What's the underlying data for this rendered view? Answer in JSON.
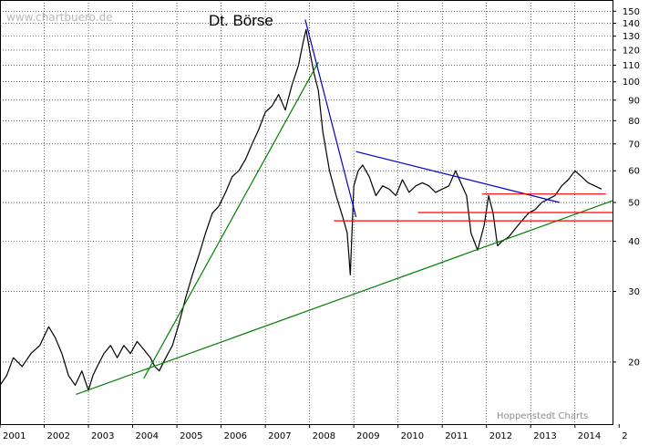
{
  "chart_data": {
    "type": "line",
    "title": "Dt. Börse",
    "watermark": "www.chartbuero.de",
    "credit": "Hoppenstedt Charts",
    "yscale": "log",
    "ylim": [
      14,
      160
    ],
    "yticks": [
      20,
      30,
      40,
      50,
      60,
      70,
      80,
      90,
      100,
      110,
      120,
      130,
      140,
      150
    ],
    "xlim": [
      2001.0,
      2014.85
    ],
    "xticks": [
      "2001",
      "2002",
      "2003",
      "2004",
      "2005",
      "2006",
      "2007",
      "2008",
      "2009",
      "2010",
      "2011",
      "2012",
      "2013",
      "2014",
      "2"
    ],
    "grid": true,
    "series": [
      {
        "x": [
          2001.0,
          2001.15,
          2001.3,
          2001.5,
          2001.7,
          2001.9,
          2002.1,
          2002.25,
          2002.4,
          2002.55,
          2002.7,
          2002.85,
          2003.0,
          2003.1,
          2003.2,
          2003.35,
          2003.5,
          2003.65,
          2003.8,
          2003.95,
          2004.1,
          2004.25,
          2004.4,
          2004.5,
          2004.6,
          2004.75,
          2004.9,
          2005.05,
          2005.2,
          2005.35,
          2005.5,
          2005.65,
          2005.8,
          2005.95,
          2006.1,
          2006.25,
          2006.4,
          2006.55,
          2006.7,
          2006.85,
          2007.0,
          2007.15,
          2007.3,
          2007.45,
          2007.6,
          2007.75,
          2007.85,
          2007.92,
          2008.0,
          2008.1,
          2008.2,
          2008.3,
          2008.45,
          2008.6,
          2008.75,
          2008.85,
          2008.92,
          2009.0,
          2009.1,
          2009.2,
          2009.35,
          2009.5,
          2009.65,
          2009.8,
          2009.95,
          2010.1,
          2010.25,
          2010.4,
          2010.55,
          2010.7,
          2010.85,
          2011.0,
          2011.15,
          2011.3,
          2011.45,
          2011.55,
          2011.65,
          2011.8,
          2011.95,
          2012.05,
          2012.15,
          2012.25,
          2012.35,
          2012.5,
          2012.65,
          2012.8,
          2012.95,
          2013.1,
          2013.25,
          2013.4,
          2013.55,
          2013.7,
          2013.85,
          2014.0,
          2014.15,
          2014.3,
          2014.45,
          2014.6
        ],
        "y": [
          17.5,
          18.5,
          20.5,
          19.5,
          21,
          22,
          24.5,
          23,
          21,
          18.5,
          17.5,
          19,
          17,
          18.5,
          19.5,
          21,
          22,
          20.5,
          22,
          21,
          22.5,
          21.5,
          20.5,
          19.5,
          19,
          20.5,
          22,
          25,
          29,
          33,
          37,
          42,
          47,
          49,
          53,
          58,
          60,
          64,
          70,
          76,
          84,
          87,
          93,
          85,
          98,
          110,
          125,
          135,
          120,
          105,
          95,
          75,
          60,
          52,
          46,
          42,
          33,
          55,
          60,
          62,
          58,
          52,
          55,
          54,
          52,
          57,
          53,
          55,
          56,
          55,
          53,
          54,
          55,
          60,
          55,
          52,
          42,
          38,
          44,
          52,
          47,
          39,
          40,
          41,
          43,
          45,
          47,
          48,
          50,
          51,
          52,
          55,
          57,
          60,
          58,
          56,
          55,
          54
        ]
      }
    ],
    "trendlines": [
      {
        "color": "#008000",
        "x": [
          2002.72,
          2014.85
        ],
        "y": [
          16.6,
          50.5
        ]
      },
      {
        "color": "#008000",
        "x": [
          2004.25,
          2008.2
        ],
        "y": [
          18.2,
          112
        ]
      },
      {
        "color": "#0000cc",
        "x": [
          2007.9,
          2009.05
        ],
        "y": [
          143,
          46
        ]
      },
      {
        "color": "#0000cc",
        "x": [
          2009.05,
          2013.65
        ],
        "y": [
          67,
          50
        ]
      }
    ],
    "supports": [
      {
        "color": "#ff0000",
        "x": [
          2008.55,
          2014.85
        ],
        "y": [
          45,
          45
        ]
      },
      {
        "color": "#ff0000",
        "x": [
          2010.45,
          2014.85
        ],
        "y": [
          47.2,
          47.2
        ]
      },
      {
        "color": "#ff0000",
        "x": [
          2011.9,
          2014.7
        ],
        "y": [
          52.5,
          52.5
        ]
      }
    ]
  }
}
